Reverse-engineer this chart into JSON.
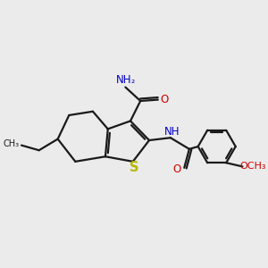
{
  "bg_color": "#ebebeb",
  "bond_color": "#1a1a1a",
  "S_color": "#b8b800",
  "N_color": "#0000cc",
  "O_color": "#cc0000",
  "line_width": 1.6,
  "font_size": 8.5,
  "figsize": [
    3.0,
    3.0
  ],
  "dpi": 100,
  "xlim": [
    0,
    10
  ],
  "ylim": [
    0,
    10
  ]
}
